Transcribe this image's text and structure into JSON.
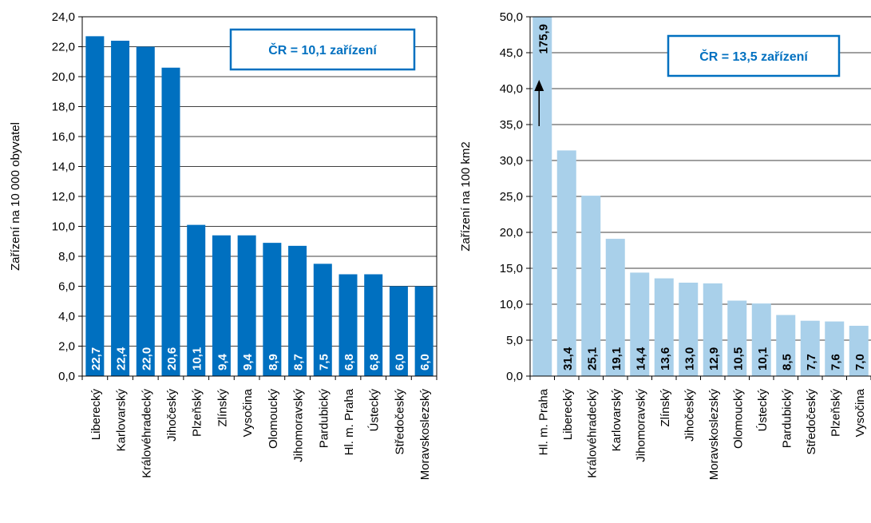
{
  "chart_data": [
    {
      "type": "bar",
      "ylabel": "Zařízení na 10 000 obyvatel",
      "ylim": [
        0,
        24
      ],
      "ytick_step": 2,
      "ytick_labels": [
        "0,0",
        "2,0",
        "4,0",
        "6,0",
        "8,0",
        "10,0",
        "12,0",
        "14,0",
        "16,0",
        "18,0",
        "20,0",
        "22,0",
        "24,0"
      ],
      "categories": [
        "Liberecký",
        "Karlovarský",
        "Královéhradecký",
        "Jihočeský",
        "Plzeňský",
        "Zlínský",
        "Vysočina",
        "Olomoucký",
        "Jihomoravský",
        "Pardubický",
        "Hl. m. Praha",
        "Ústecký",
        "Středočeský",
        "Moravskoslezský"
      ],
      "values": [
        22.7,
        22.4,
        22.0,
        20.6,
        10.1,
        9.4,
        9.4,
        8.9,
        8.7,
        7.5,
        6.8,
        6.8,
        6.0,
        6.0
      ],
      "data_labels": [
        "22,7",
        "22,4",
        "22,0",
        "20,6",
        "10,1",
        "9,4",
        "9,4",
        "8,9",
        "8,7",
        "7,5",
        "6,8",
        "6,8",
        "6,0",
        "6,0"
      ],
      "annotation": "ČR = 10,1 zařízení",
      "bar_color": "#0070c0",
      "label_color": "#ffffff",
      "grid": true
    },
    {
      "type": "bar",
      "ylabel": "Zařízení na 100 km2",
      "ylim": [
        0,
        50
      ],
      "ytick_step": 5,
      "ytick_labels": [
        "0,0",
        "5,0",
        "10,0",
        "15,0",
        "20,0",
        "25,0",
        "30,0",
        "35,0",
        "40,0",
        "45,0",
        "50,0"
      ],
      "categories": [
        "Hl. m. Praha",
        "Liberecký",
        "Královéhradecký",
        "Karlovarský",
        "Jihomoravský",
        "Zlínský",
        "Jihočeský",
        "Moravskoslezský",
        "Olomoucký",
        "Ústecký",
        "Pardubický",
        "Středočeský",
        "Plzeňský",
        "Vysočina"
      ],
      "values": [
        175.9,
        31.4,
        25.1,
        19.1,
        14.4,
        13.6,
        13.0,
        12.9,
        10.5,
        10.1,
        8.5,
        7.7,
        7.6,
        7.0
      ],
      "data_labels": [
        "175,9",
        "31,4",
        "25,1",
        "19,1",
        "14,4",
        "13,6",
        "13,0",
        "12,9",
        "10,5",
        "10,1",
        "8,5",
        "7,7",
        "7,6",
        "7,0"
      ],
      "annotation": "ČR = 13,5 zařízení",
      "bar_color": "#a9d0ea",
      "label_color": "#000000",
      "grid": true
    }
  ]
}
